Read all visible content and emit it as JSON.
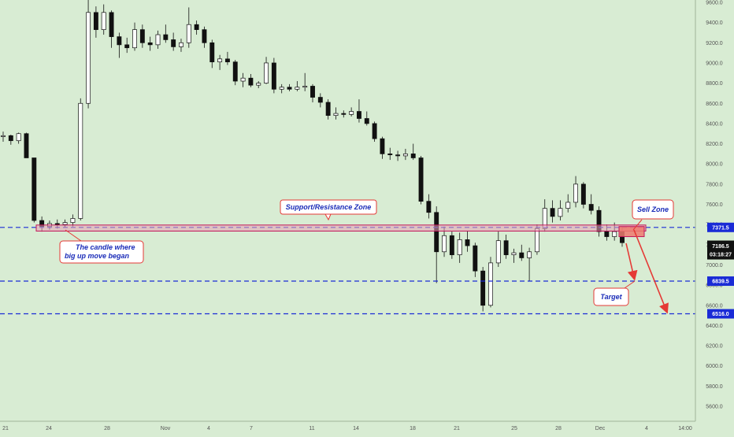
{
  "chart_data": {
    "type": "candlestick",
    "y_ticks": [
      9600,
      9400,
      9200,
      9000,
      8800,
      8600,
      8400,
      8200,
      8000,
      7800,
      7600,
      7400,
      7200,
      7000,
      6800,
      6600,
      6400,
      6200,
      6000,
      5800,
      5600
    ],
    "y_tick_labels": [
      "9600.0",
      "9400.0",
      "9200.0",
      "9000.0",
      "8800.0",
      "8600.0",
      "8400.0",
      "8200.0",
      "8000.0",
      "7800.0",
      "7600.0",
      "7400.0",
      "7200.0",
      "7000.0",
      "6800.0",
      "6600.0",
      "6400.0",
      "6200.0",
      "6000.0",
      "5800.0",
      "5600.0"
    ],
    "x_labels": [
      "21",
      "24",
      "28",
      "Nov",
      "4",
      "7",
      "11",
      "14",
      "18",
      "21",
      "25",
      "28",
      "Dec",
      "4",
      "14:00"
    ],
    "ylim": [
      5450,
      9650
    ],
    "levels": [
      {
        "name": "resistance",
        "value": 7371.5,
        "label": "7371.5"
      },
      {
        "name": "target-1",
        "value": 6839.5,
        "label": "6839.5"
      },
      {
        "name": "target-2",
        "value": 6516.0,
        "label": "6516.0"
      }
    ],
    "current_price": {
      "value": 7186.5,
      "label": "7186.5",
      "countdown": "03:18:27"
    },
    "zones": [
      {
        "name": "support-resistance-zone",
        "from": 7335,
        "to": 7395
      },
      {
        "name": "sell-zone",
        "from": 7280,
        "to": 7380
      }
    ],
    "annotations": {
      "sr_zone": "Support/Resistance Zone",
      "candle_note_line1": "The candle where",
      "candle_note_line2": "big up move began",
      "sell_zone": "Sell Zone",
      "target": "Target"
    },
    "colors": {
      "background": "#d8ecd3",
      "candle": "#111111",
      "level_line": "#1a2bd6",
      "zone_fill": "#e8a0b4",
      "zone_stroke": "#c2185b",
      "arrow": "#e53935",
      "callout_border": "#e53935",
      "callout_text": "#1a2bb8"
    },
    "candles": [
      {
        "o": 8270,
        "h": 8320,
        "l": 8220,
        "c": 8280
      },
      {
        "o": 8280,
        "h": 8290,
        "l": 8190,
        "c": 8230
      },
      {
        "o": 8230,
        "h": 8310,
        "l": 8200,
        "c": 8300
      },
      {
        "o": 8300,
        "h": 8310,
        "l": 8100,
        "c": 8060
      },
      {
        "o": 8060,
        "h": 8060,
        "l": 7420,
        "c": 7440
      },
      {
        "o": 7440,
        "h": 7480,
        "l": 7330,
        "c": 7380
      },
      {
        "o": 7380,
        "h": 7440,
        "l": 7350,
        "c": 7410
      },
      {
        "o": 7410,
        "h": 7450,
        "l": 7360,
        "c": 7400
      },
      {
        "o": 7400,
        "h": 7450,
        "l": 7370,
        "c": 7420
      },
      {
        "o": 7420,
        "h": 7500,
        "l": 7380,
        "c": 7460
      },
      {
        "o": 7460,
        "h": 8650,
        "l": 7440,
        "c": 8600
      },
      {
        "o": 8600,
        "h": 9950,
        "l": 8550,
        "c": 9500
      },
      {
        "o": 9500,
        "h": 9560,
        "l": 9250,
        "c": 9330
      },
      {
        "o": 9330,
        "h": 9580,
        "l": 9280,
        "c": 9500
      },
      {
        "o": 9500,
        "h": 9520,
        "l": 9150,
        "c": 9260
      },
      {
        "o": 9260,
        "h": 9300,
        "l": 9050,
        "c": 9180
      },
      {
        "o": 9180,
        "h": 9250,
        "l": 9100,
        "c": 9150
      },
      {
        "o": 9150,
        "h": 9400,
        "l": 9120,
        "c": 9330
      },
      {
        "o": 9330,
        "h": 9380,
        "l": 9150,
        "c": 9200
      },
      {
        "o": 9200,
        "h": 9260,
        "l": 9120,
        "c": 9180
      },
      {
        "o": 9180,
        "h": 9320,
        "l": 9140,
        "c": 9280
      },
      {
        "o": 9280,
        "h": 9380,
        "l": 9200,
        "c": 9230
      },
      {
        "o": 9230,
        "h": 9300,
        "l": 9120,
        "c": 9160
      },
      {
        "o": 9160,
        "h": 9240,
        "l": 9110,
        "c": 9200
      },
      {
        "o": 9200,
        "h": 9550,
        "l": 9150,
        "c": 9380
      },
      {
        "o": 9380,
        "h": 9420,
        "l": 9280,
        "c": 9330
      },
      {
        "o": 9330,
        "h": 9360,
        "l": 9150,
        "c": 9200
      },
      {
        "o": 9200,
        "h": 9230,
        "l": 8950,
        "c": 9010
      },
      {
        "o": 9010,
        "h": 9080,
        "l": 8930,
        "c": 9040
      },
      {
        "o": 9040,
        "h": 9110,
        "l": 8980,
        "c": 9010
      },
      {
        "o": 9010,
        "h": 9030,
        "l": 8780,
        "c": 8820
      },
      {
        "o": 8820,
        "h": 8900,
        "l": 8760,
        "c": 8850
      },
      {
        "o": 8850,
        "h": 8890,
        "l": 8760,
        "c": 8780
      },
      {
        "o": 8780,
        "h": 8820,
        "l": 8750,
        "c": 8800
      },
      {
        "o": 8800,
        "h": 9060,
        "l": 8790,
        "c": 9000
      },
      {
        "o": 9000,
        "h": 9050,
        "l": 8700,
        "c": 8740
      },
      {
        "o": 8740,
        "h": 8790,
        "l": 8700,
        "c": 8760
      },
      {
        "o": 8760,
        "h": 8790,
        "l": 8720,
        "c": 8740
      },
      {
        "o": 8740,
        "h": 8820,
        "l": 8720,
        "c": 8760
      },
      {
        "o": 8760,
        "h": 8900,
        "l": 8720,
        "c": 8770
      },
      {
        "o": 8770,
        "h": 8790,
        "l": 8610,
        "c": 8660
      },
      {
        "o": 8660,
        "h": 8700,
        "l": 8560,
        "c": 8610
      },
      {
        "o": 8610,
        "h": 8640,
        "l": 8440,
        "c": 8480
      },
      {
        "o": 8480,
        "h": 8560,
        "l": 8440,
        "c": 8500
      },
      {
        "o": 8500,
        "h": 8530,
        "l": 8460,
        "c": 8490
      },
      {
        "o": 8490,
        "h": 8560,
        "l": 8470,
        "c": 8520
      },
      {
        "o": 8520,
        "h": 8640,
        "l": 8410,
        "c": 8450
      },
      {
        "o": 8450,
        "h": 8520,
        "l": 8380,
        "c": 8400
      },
      {
        "o": 8400,
        "h": 8420,
        "l": 8220,
        "c": 8250
      },
      {
        "o": 8250,
        "h": 8270,
        "l": 8050,
        "c": 8100
      },
      {
        "o": 8100,
        "h": 8160,
        "l": 8040,
        "c": 8090
      },
      {
        "o": 8090,
        "h": 8130,
        "l": 8030,
        "c": 8080
      },
      {
        "o": 8080,
        "h": 8150,
        "l": 8040,
        "c": 8100
      },
      {
        "o": 8100,
        "h": 8200,
        "l": 8040,
        "c": 8060
      },
      {
        "o": 8060,
        "h": 8080,
        "l": 7600,
        "c": 7630
      },
      {
        "o": 7630,
        "h": 7700,
        "l": 7460,
        "c": 7520
      },
      {
        "o": 7520,
        "h": 7580,
        "l": 6820,
        "c": 7130
      },
      {
        "o": 7130,
        "h": 7380,
        "l": 7080,
        "c": 7290
      },
      {
        "o": 7290,
        "h": 7330,
        "l": 7060,
        "c": 7100
      },
      {
        "o": 7100,
        "h": 7320,
        "l": 7020,
        "c": 7250
      },
      {
        "o": 7250,
        "h": 7340,
        "l": 7130,
        "c": 7190
      },
      {
        "o": 7190,
        "h": 7220,
        "l": 6880,
        "c": 6940
      },
      {
        "o": 6940,
        "h": 6980,
        "l": 6540,
        "c": 6600
      },
      {
        "o": 6600,
        "h": 7080,
        "l": 6580,
        "c": 7020
      },
      {
        "o": 7020,
        "h": 7330,
        "l": 6980,
        "c": 7240
      },
      {
        "o": 7240,
        "h": 7300,
        "l": 7060,
        "c": 7100
      },
      {
        "o": 7100,
        "h": 7160,
        "l": 7020,
        "c": 7120
      },
      {
        "o": 7120,
        "h": 7200,
        "l": 7040,
        "c": 7070
      },
      {
        "o": 7070,
        "h": 7170,
        "l": 6840,
        "c": 7130
      },
      {
        "o": 7130,
        "h": 7400,
        "l": 7100,
        "c": 7360
      },
      {
        "o": 7360,
        "h": 7650,
        "l": 7330,
        "c": 7560
      },
      {
        "o": 7560,
        "h": 7640,
        "l": 7420,
        "c": 7480
      },
      {
        "o": 7480,
        "h": 7640,
        "l": 7440,
        "c": 7560
      },
      {
        "o": 7560,
        "h": 7700,
        "l": 7520,
        "c": 7620
      },
      {
        "o": 7620,
        "h": 7880,
        "l": 7570,
        "c": 7800
      },
      {
        "o": 7800,
        "h": 7820,
        "l": 7560,
        "c": 7600
      },
      {
        "o": 7600,
        "h": 7700,
        "l": 7500,
        "c": 7540
      },
      {
        "o": 7540,
        "h": 7580,
        "l": 7280,
        "c": 7330
      },
      {
        "o": 7330,
        "h": 7400,
        "l": 7240,
        "c": 7280
      },
      {
        "o": 7280,
        "h": 7420,
        "l": 7240,
        "c": 7330
      },
      {
        "o": 7330,
        "h": 7380,
        "l": 7180,
        "c": 7220
      }
    ]
  }
}
